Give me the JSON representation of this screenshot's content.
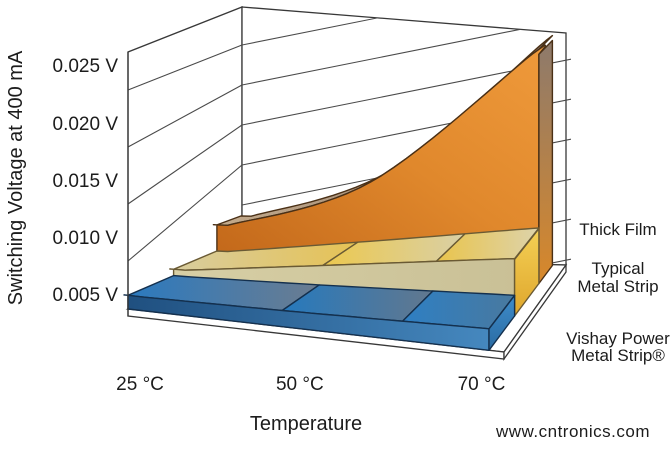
{
  "chart_data": {
    "type": "area3d",
    "title": "",
    "xlabel": "Temperature",
    "ylabel": "Switching Voltage at 400 mA",
    "categories": [
      "25 °C",
      "50 °C",
      "70 °C"
    ],
    "y_tick_labels": [
      "0.025 V",
      "0.020 V",
      "0.015 V",
      "0.010 V",
      "0.005 V"
    ],
    "y_axis": {
      "unit": "V",
      "tick_step": 0.005,
      "ticks": [
        0.005,
        0.01,
        0.015,
        0.02,
        0.025
      ],
      "approx_range": [
        0.004,
        0.0265
      ]
    },
    "x_axis": {
      "unit": "°C",
      "ticks": [
        25,
        50,
        70
      ]
    },
    "grid": true,
    "legend_position": "right",
    "series": [
      {
        "name": "Thick Film",
        "values": [
          0.0085,
          0.0135,
          0.027
        ],
        "color": "#e08a2d"
      },
      {
        "name": "Typical Metal Strip",
        "values": [
          0.0058,
          0.0075,
          0.0095
        ],
        "color": "#eac84e"
      },
      {
        "name": "Vishay Power Metal Strip®",
        "values": [
          0.0052,
          0.0055,
          0.006
        ],
        "color": "#2e7fc2"
      }
    ],
    "legend": {
      "entries": [
        {
          "lines": [
            "Thick Film"
          ]
        },
        {
          "lines": [
            "Typical",
            "Metal Strip"
          ]
        },
        {
          "lines": [
            "Vishay Power",
            "Metal Strip®"
          ]
        }
      ]
    }
  },
  "watermark": {
    "text": "www.cntronics.com",
    "color": "#c9e6bd"
  }
}
